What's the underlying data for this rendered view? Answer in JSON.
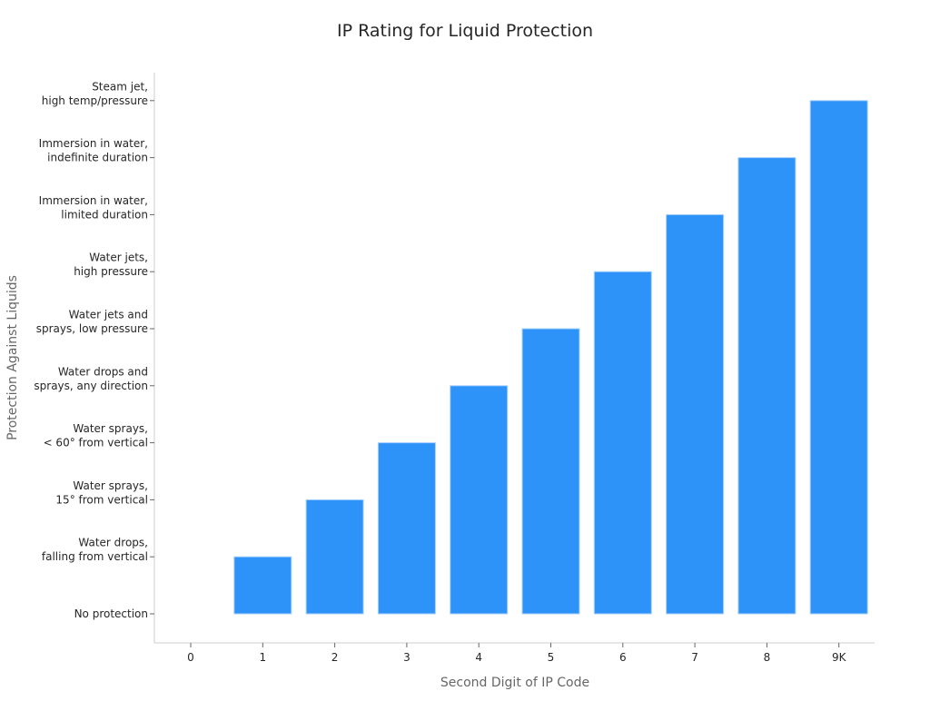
{
  "chart_data": {
    "type": "bar",
    "title": "IP Rating for Liquid Protection",
    "xlabel": "Second Digit of IP Code",
    "ylabel": "Protection Against Liquids",
    "categories": [
      "0",
      "1",
      "2",
      "3",
      "4",
      "5",
      "6",
      "7",
      "8",
      "9K"
    ],
    "values": [
      0,
      1,
      2,
      3,
      4,
      5,
      6,
      7,
      8,
      9
    ],
    "ytick_labels": [
      "No protection",
      "Water drops,\nfalling from vertical",
      "Water sprays,\n15° from vertical",
      "Water sprays,\n< 60° from vertical",
      "Water drops and\nsprays, any direction",
      "Water jets and\nsprays, low pressure",
      "Water jets,\nhigh pressure",
      "Immersion in water,\nlimited duration",
      "Immersion in water,\nindefinite duration",
      "Steam jet,\nhigh temp/pressure"
    ],
    "ylim": [
      -0.5,
      9.5
    ],
    "grid": false,
    "bar_color": "#2E93F9",
    "bar_edge_color": "#A8D0FA",
    "axis_color": "#CCCCCC",
    "title_color": "#262626",
    "label_color": "#666666",
    "tick_color": "#262626"
  }
}
